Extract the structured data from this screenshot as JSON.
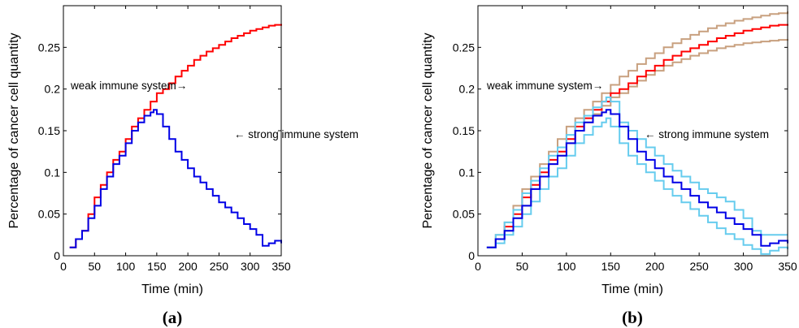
{
  "chart_data": [
    {
      "type": "line",
      "panel_label": "(a)",
      "xlabel": "Time (min)",
      "ylabel": "Percentage of cancer cell quantity",
      "xlim": [
        0,
        350
      ],
      "ylim": [
        0,
        0.3
      ],
      "xticks": [
        "0",
        "50",
        "100",
        "150",
        "200",
        "250",
        "300",
        "350"
      ],
      "yticks": [
        "0",
        "0.05",
        "0.1",
        "0.15",
        "0.2",
        "0.25"
      ],
      "annotations": [
        {
          "text": "weak immune system→",
          "x": 90,
          "y": 0.205
        },
        {
          "text": "← strong immune system",
          "x": 205,
          "y": 0.165
        }
      ],
      "series": [
        {
          "color": "#ff0000",
          "step": true,
          "x": [
            10,
            20,
            30,
            40,
            50,
            60,
            70,
            80,
            90,
            100,
            110,
            120,
            130,
            140,
            150,
            160,
            170,
            180,
            190,
            200,
            210,
            220,
            230,
            240,
            250,
            260,
            270,
            280,
            290,
            300,
            310,
            320,
            330,
            340,
            350
          ],
          "y": [
            0.01,
            0.02,
            0.03,
            0.05,
            0.07,
            0.085,
            0.1,
            0.115,
            0.125,
            0.14,
            0.155,
            0.165,
            0.175,
            0.185,
            0.195,
            0.2,
            0.207,
            0.215,
            0.222,
            0.228,
            0.235,
            0.24,
            0.245,
            0.249,
            0.253,
            0.257,
            0.261,
            0.264,
            0.267,
            0.27,
            0.272,
            0.274,
            0.276,
            0.277,
            0.278
          ]
        },
        {
          "color": "#0000e6",
          "step": true,
          "x": [
            10,
            20,
            30,
            40,
            50,
            60,
            70,
            80,
            90,
            100,
            110,
            120,
            130,
            140,
            145,
            150,
            160,
            170,
            180,
            190,
            200,
            210,
            220,
            230,
            240,
            250,
            260,
            270,
            280,
            290,
            300,
            310,
            320,
            330,
            340,
            350
          ],
          "y": [
            0.01,
            0.02,
            0.03,
            0.045,
            0.06,
            0.08,
            0.095,
            0.11,
            0.12,
            0.135,
            0.15,
            0.16,
            0.168,
            0.172,
            0.175,
            0.17,
            0.155,
            0.14,
            0.125,
            0.115,
            0.105,
            0.095,
            0.088,
            0.08,
            0.072,
            0.064,
            0.058,
            0.052,
            0.045,
            0.038,
            0.032,
            0.025,
            0.012,
            0.015,
            0.018,
            0.015
          ]
        }
      ]
    },
    {
      "type": "line",
      "panel_label": "(b)",
      "xlabel": "Time (min)",
      "ylabel": "Percentage of cancer cell quantity",
      "xlim": [
        0,
        350
      ],
      "ylim": [
        0,
        0.3
      ],
      "xticks": [
        "0",
        "50",
        "100",
        "150",
        "200",
        "250",
        "300",
        "350"
      ],
      "yticks": [
        "0",
        "0.05",
        "0.1",
        "0.15",
        "0.2",
        "0.25"
      ],
      "annotations": [
        {
          "text": "weak immune system→",
          "x": 22,
          "y": 0.205
        },
        {
          "text": "← strong immune system",
          "x": 205,
          "y": 0.147
        }
      ],
      "series": [
        {
          "color": "#c8a07f",
          "step": true,
          "x": [
            10,
            20,
            30,
            40,
            50,
            60,
            70,
            80,
            90,
            100,
            110,
            120,
            130,
            140,
            150,
            160,
            170,
            180,
            190,
            200,
            210,
            220,
            230,
            240,
            250,
            260,
            270,
            280,
            290,
            300,
            310,
            320,
            330,
            340,
            350
          ],
          "y": [
            0.01,
            0.025,
            0.04,
            0.06,
            0.08,
            0.095,
            0.11,
            0.125,
            0.14,
            0.155,
            0.165,
            0.175,
            0.185,
            0.195,
            0.205,
            0.215,
            0.222,
            0.23,
            0.237,
            0.243,
            0.25,
            0.255,
            0.26,
            0.265,
            0.269,
            0.273,
            0.276,
            0.279,
            0.282,
            0.284,
            0.286,
            0.288,
            0.29,
            0.291,
            0.293
          ]
        },
        {
          "color": "#c8a07f",
          "step": true,
          "x": [
            10,
            20,
            30,
            40,
            50,
            60,
            70,
            80,
            90,
            100,
            110,
            120,
            130,
            140,
            150,
            160,
            170,
            180,
            190,
            200,
            210,
            220,
            230,
            240,
            250,
            260,
            270,
            280,
            290,
            300,
            310,
            320,
            330,
            340,
            350
          ],
          "y": [
            0.01,
            0.02,
            0.03,
            0.045,
            0.06,
            0.08,
            0.095,
            0.11,
            0.12,
            0.135,
            0.15,
            0.16,
            0.17,
            0.18,
            0.19,
            0.195,
            0.203,
            0.21,
            0.217,
            0.222,
            0.228,
            0.232,
            0.236,
            0.24,
            0.243,
            0.246,
            0.249,
            0.251,
            0.253,
            0.255,
            0.256,
            0.257,
            0.258,
            0.259,
            0.26
          ]
        },
        {
          "color": "#ff0000",
          "step": true,
          "x": [
            10,
            20,
            30,
            40,
            50,
            60,
            70,
            80,
            90,
            100,
            110,
            120,
            130,
            140,
            150,
            160,
            170,
            180,
            190,
            200,
            210,
            220,
            230,
            240,
            250,
            260,
            270,
            280,
            290,
            300,
            310,
            320,
            330,
            340,
            350
          ],
          "y": [
            0.01,
            0.02,
            0.035,
            0.05,
            0.07,
            0.085,
            0.1,
            0.115,
            0.125,
            0.14,
            0.155,
            0.165,
            0.175,
            0.185,
            0.195,
            0.2,
            0.207,
            0.215,
            0.222,
            0.228,
            0.235,
            0.24,
            0.245,
            0.249,
            0.253,
            0.257,
            0.261,
            0.264,
            0.267,
            0.27,
            0.272,
            0.274,
            0.276,
            0.277,
            0.278
          ]
        },
        {
          "color": "#66ccee",
          "step": true,
          "x": [
            10,
            20,
            30,
            40,
            50,
            60,
            70,
            80,
            90,
            100,
            110,
            120,
            130,
            140,
            145,
            150,
            160,
            170,
            180,
            190,
            200,
            210,
            220,
            230,
            240,
            250,
            260,
            270,
            280,
            290,
            300,
            310,
            320,
            330,
            340,
            350
          ],
          "y": [
            0.01,
            0.025,
            0.04,
            0.055,
            0.075,
            0.09,
            0.105,
            0.12,
            0.13,
            0.145,
            0.16,
            0.168,
            0.178,
            0.185,
            0.19,
            0.185,
            0.16,
            0.15,
            0.14,
            0.13,
            0.12,
            0.11,
            0.102,
            0.095,
            0.088,
            0.08,
            0.075,
            0.07,
            0.065,
            0.055,
            0.045,
            0.03,
            0.025,
            0.025,
            0.025,
            0.025
          ]
        },
        {
          "color": "#66ccee",
          "step": true,
          "x": [
            10,
            20,
            30,
            40,
            50,
            60,
            70,
            80,
            90,
            100,
            110,
            120,
            130,
            140,
            145,
            150,
            160,
            170,
            180,
            190,
            200,
            210,
            220,
            230,
            240,
            250,
            260,
            270,
            280,
            290,
            300,
            310,
            320,
            330,
            340,
            350
          ],
          "y": [
            0.01,
            0.015,
            0.025,
            0.035,
            0.05,
            0.065,
            0.08,
            0.095,
            0.105,
            0.12,
            0.135,
            0.145,
            0.155,
            0.16,
            0.165,
            0.155,
            0.135,
            0.12,
            0.11,
            0.1,
            0.09,
            0.08,
            0.072,
            0.064,
            0.056,
            0.048,
            0.04,
            0.033,
            0.026,
            0.02,
            0.013,
            0.008,
            0.002,
            0.006,
            0.01,
            0.008
          ]
        },
        {
          "color": "#0000e6",
          "step": true,
          "x": [
            10,
            20,
            30,
            40,
            50,
            60,
            70,
            80,
            90,
            100,
            110,
            120,
            130,
            140,
            145,
            150,
            160,
            170,
            180,
            190,
            200,
            210,
            220,
            230,
            240,
            250,
            260,
            270,
            280,
            290,
            300,
            310,
            320,
            330,
            340,
            350
          ],
          "y": [
            0.01,
            0.02,
            0.03,
            0.045,
            0.06,
            0.08,
            0.095,
            0.11,
            0.12,
            0.135,
            0.15,
            0.16,
            0.168,
            0.172,
            0.175,
            0.17,
            0.155,
            0.14,
            0.125,
            0.115,
            0.105,
            0.095,
            0.088,
            0.08,
            0.072,
            0.064,
            0.058,
            0.052,
            0.045,
            0.038,
            0.032,
            0.025,
            0.012,
            0.015,
            0.018,
            0.015
          ]
        }
      ]
    }
  ]
}
